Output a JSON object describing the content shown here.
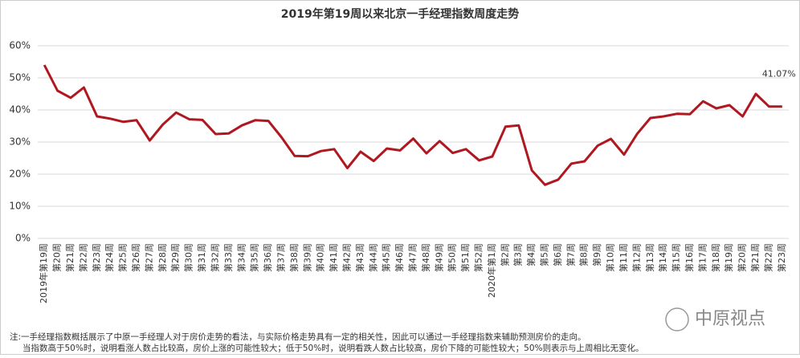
{
  "chart_data": {
    "type": "line",
    "title": "2019年第19周以来北京一手经理指数周度走势",
    "categories": [
      "2019年第19周",
      "第20周",
      "第21周",
      "第22周",
      "第23周",
      "第24周",
      "第25周",
      "第26周",
      "第27周",
      "第28周",
      "第29周",
      "第30周",
      "第31周",
      "第32周",
      "第33周",
      "第34周",
      "第35周",
      "第36周",
      "第37周",
      "第38周",
      "第39周",
      "第40周",
      "第41周",
      "第42周",
      "第43周",
      "第44周",
      "第45周",
      "第46周",
      "第47周",
      "第48周",
      "第49周",
      "第50周",
      "第51周",
      "第52周",
      "2020年第1周",
      "第2周",
      "第3周",
      "第4周",
      "第5周",
      "第6周",
      "第7周",
      "第8周",
      "第9周",
      "第10周",
      "第11周",
      "第12周",
      "第13周",
      "第14周",
      "第15周",
      "第16周",
      "第17周",
      "第18周",
      "第19周",
      "第20周",
      "第21周",
      "第22周",
      "第23周"
    ],
    "series": [
      {
        "color": "#b01820",
        "values": [
          54,
          46,
          43.8,
          47,
          38,
          37.3,
          36.3,
          36.8,
          30.5,
          35.5,
          39.2,
          37.1,
          36.9,
          32.5,
          32.7,
          35.2,
          36.8,
          36.6,
          31.5,
          25.7,
          25.6,
          27.2,
          27.8,
          21.9,
          27,
          24.1,
          28,
          27.4,
          31.1,
          26.5,
          30.3,
          26.6,
          27.8,
          24.3,
          25.5,
          34.8,
          35.2,
          21.2,
          16.7,
          18.3,
          23.3,
          24,
          28.9,
          31,
          26.1,
          32.6,
          37.5,
          38,
          38.8,
          38.7,
          42.7,
          40.5,
          41.5,
          38,
          45,
          41.07,
          41.07
        ],
        "value_labels": [
          null,
          null,
          null,
          null,
          null,
          null,
          null,
          null,
          null,
          null,
          null,
          null,
          null,
          null,
          null,
          null,
          null,
          null,
          null,
          null,
          null,
          null,
          null,
          null,
          null,
          null,
          null,
          null,
          null,
          null,
          null,
          null,
          null,
          null,
          null,
          null,
          null,
          null,
          null,
          null,
          null,
          null,
          null,
          null,
          null,
          null,
          null,
          null,
          null,
          null,
          null,
          null,
          null,
          null,
          null,
          null,
          "41.07%"
        ]
      }
    ],
    "ylim": [
      0,
      60
    ],
    "yticks": [
      {
        "value": 0,
        "label": "0%"
      },
      {
        "value": 10,
        "label": "10%"
      },
      {
        "value": 20,
        "label": "20%"
      },
      {
        "value": 30,
        "label": "30%"
      },
      {
        "value": 40,
        "label": "40%"
      },
      {
        "value": 50,
        "label": "50%"
      },
      {
        "value": 60,
        "label": "60%"
      }
    ],
    "grid": true
  },
  "notes": [
    "注:一手经理指数概括展示了中原一手经理人对于房价走势的看法，与实际价格走势具有一定的相关性，因此可以通过一手经理指数来辅助预测房价的走向。",
    "当指数高于50%时，说明看涨人数占比较高，房价上涨的可能性较大；低于50%时，说明看跌人数占比较高，房价下降的可能性较大；50%则表示与上周相比无变化。"
  ],
  "watermark": "中原视点"
}
